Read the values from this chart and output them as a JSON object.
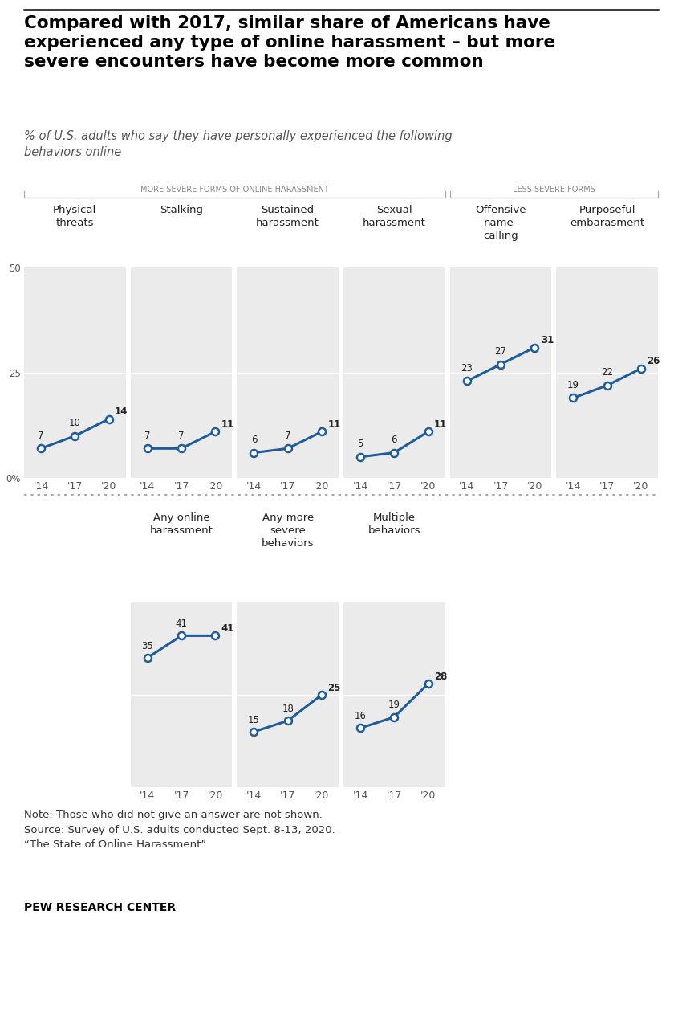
{
  "title": "Compared with 2017, similar share of Americans have\nexperienced any type of online harassment – but more\nsevere encounters have become more common",
  "subtitle": "% of U.S. adults who say they have personally experienced the following\nbehaviors online",
  "top_charts": [
    {
      "label": "Physical\nthreats",
      "values": [
        7,
        10,
        14
      ],
      "years": [
        "'14",
        "'17",
        "'20"
      ]
    },
    {
      "label": "Stalking",
      "values": [
        7,
        7,
        11
      ],
      "years": [
        "'14",
        "'17",
        "'20"
      ]
    },
    {
      "label": "Sustained\nharassment",
      "values": [
        6,
        7,
        11
      ],
      "years": [
        "'14",
        "'17",
        "'20"
      ]
    },
    {
      "label": "Sexual\nharassment",
      "values": [
        5,
        6,
        11
      ],
      "years": [
        "'14",
        "'17",
        "'20"
      ]
    },
    {
      "label": "Offensive\nname-\ncalling",
      "values": [
        23,
        27,
        31
      ],
      "years": [
        "'14",
        "'17",
        "'20"
      ]
    },
    {
      "label": "Purposeful\nembarasment",
      "values": [
        19,
        22,
        26
      ],
      "years": [
        "'14",
        "'17",
        "'20"
      ]
    }
  ],
  "bottom_charts": [
    {
      "label": "Any online\nharassment",
      "values": [
        35,
        41,
        41
      ],
      "years": [
        "'14",
        "'17",
        "'20"
      ]
    },
    {
      "label": "Any more\nsevere\nbehaviors",
      "values": [
        15,
        18,
        25
      ],
      "years": [
        "'14",
        "'17",
        "'20"
      ]
    },
    {
      "label": "Multiple\nbehaviors",
      "values": [
        16,
        19,
        28
      ],
      "years": [
        "'14",
        "'17",
        "'20"
      ]
    }
  ],
  "severe_label": "MORE SEVERE FORMS OF ONLINE HARASSMENT",
  "less_severe_label": "LESS SEVERE FORMS",
  "note": "Note: Those who did not give an answer are not shown.\nSource: Survey of U.S. adults conducted Sept. 8-13, 2020.\n“The State of Online Harassment”",
  "source_bold": "PEW RESEARCH CENTER",
  "line_color": "#1f5c99",
  "marker_face": "#ffffff",
  "marker_edge": "#1f5c99",
  "panel_bg": "#ebebeb",
  "grid_color": "#cccccc",
  "label_color_top": [
    false,
    false,
    false,
    false,
    false,
    false
  ],
  "label_bold_last": true
}
